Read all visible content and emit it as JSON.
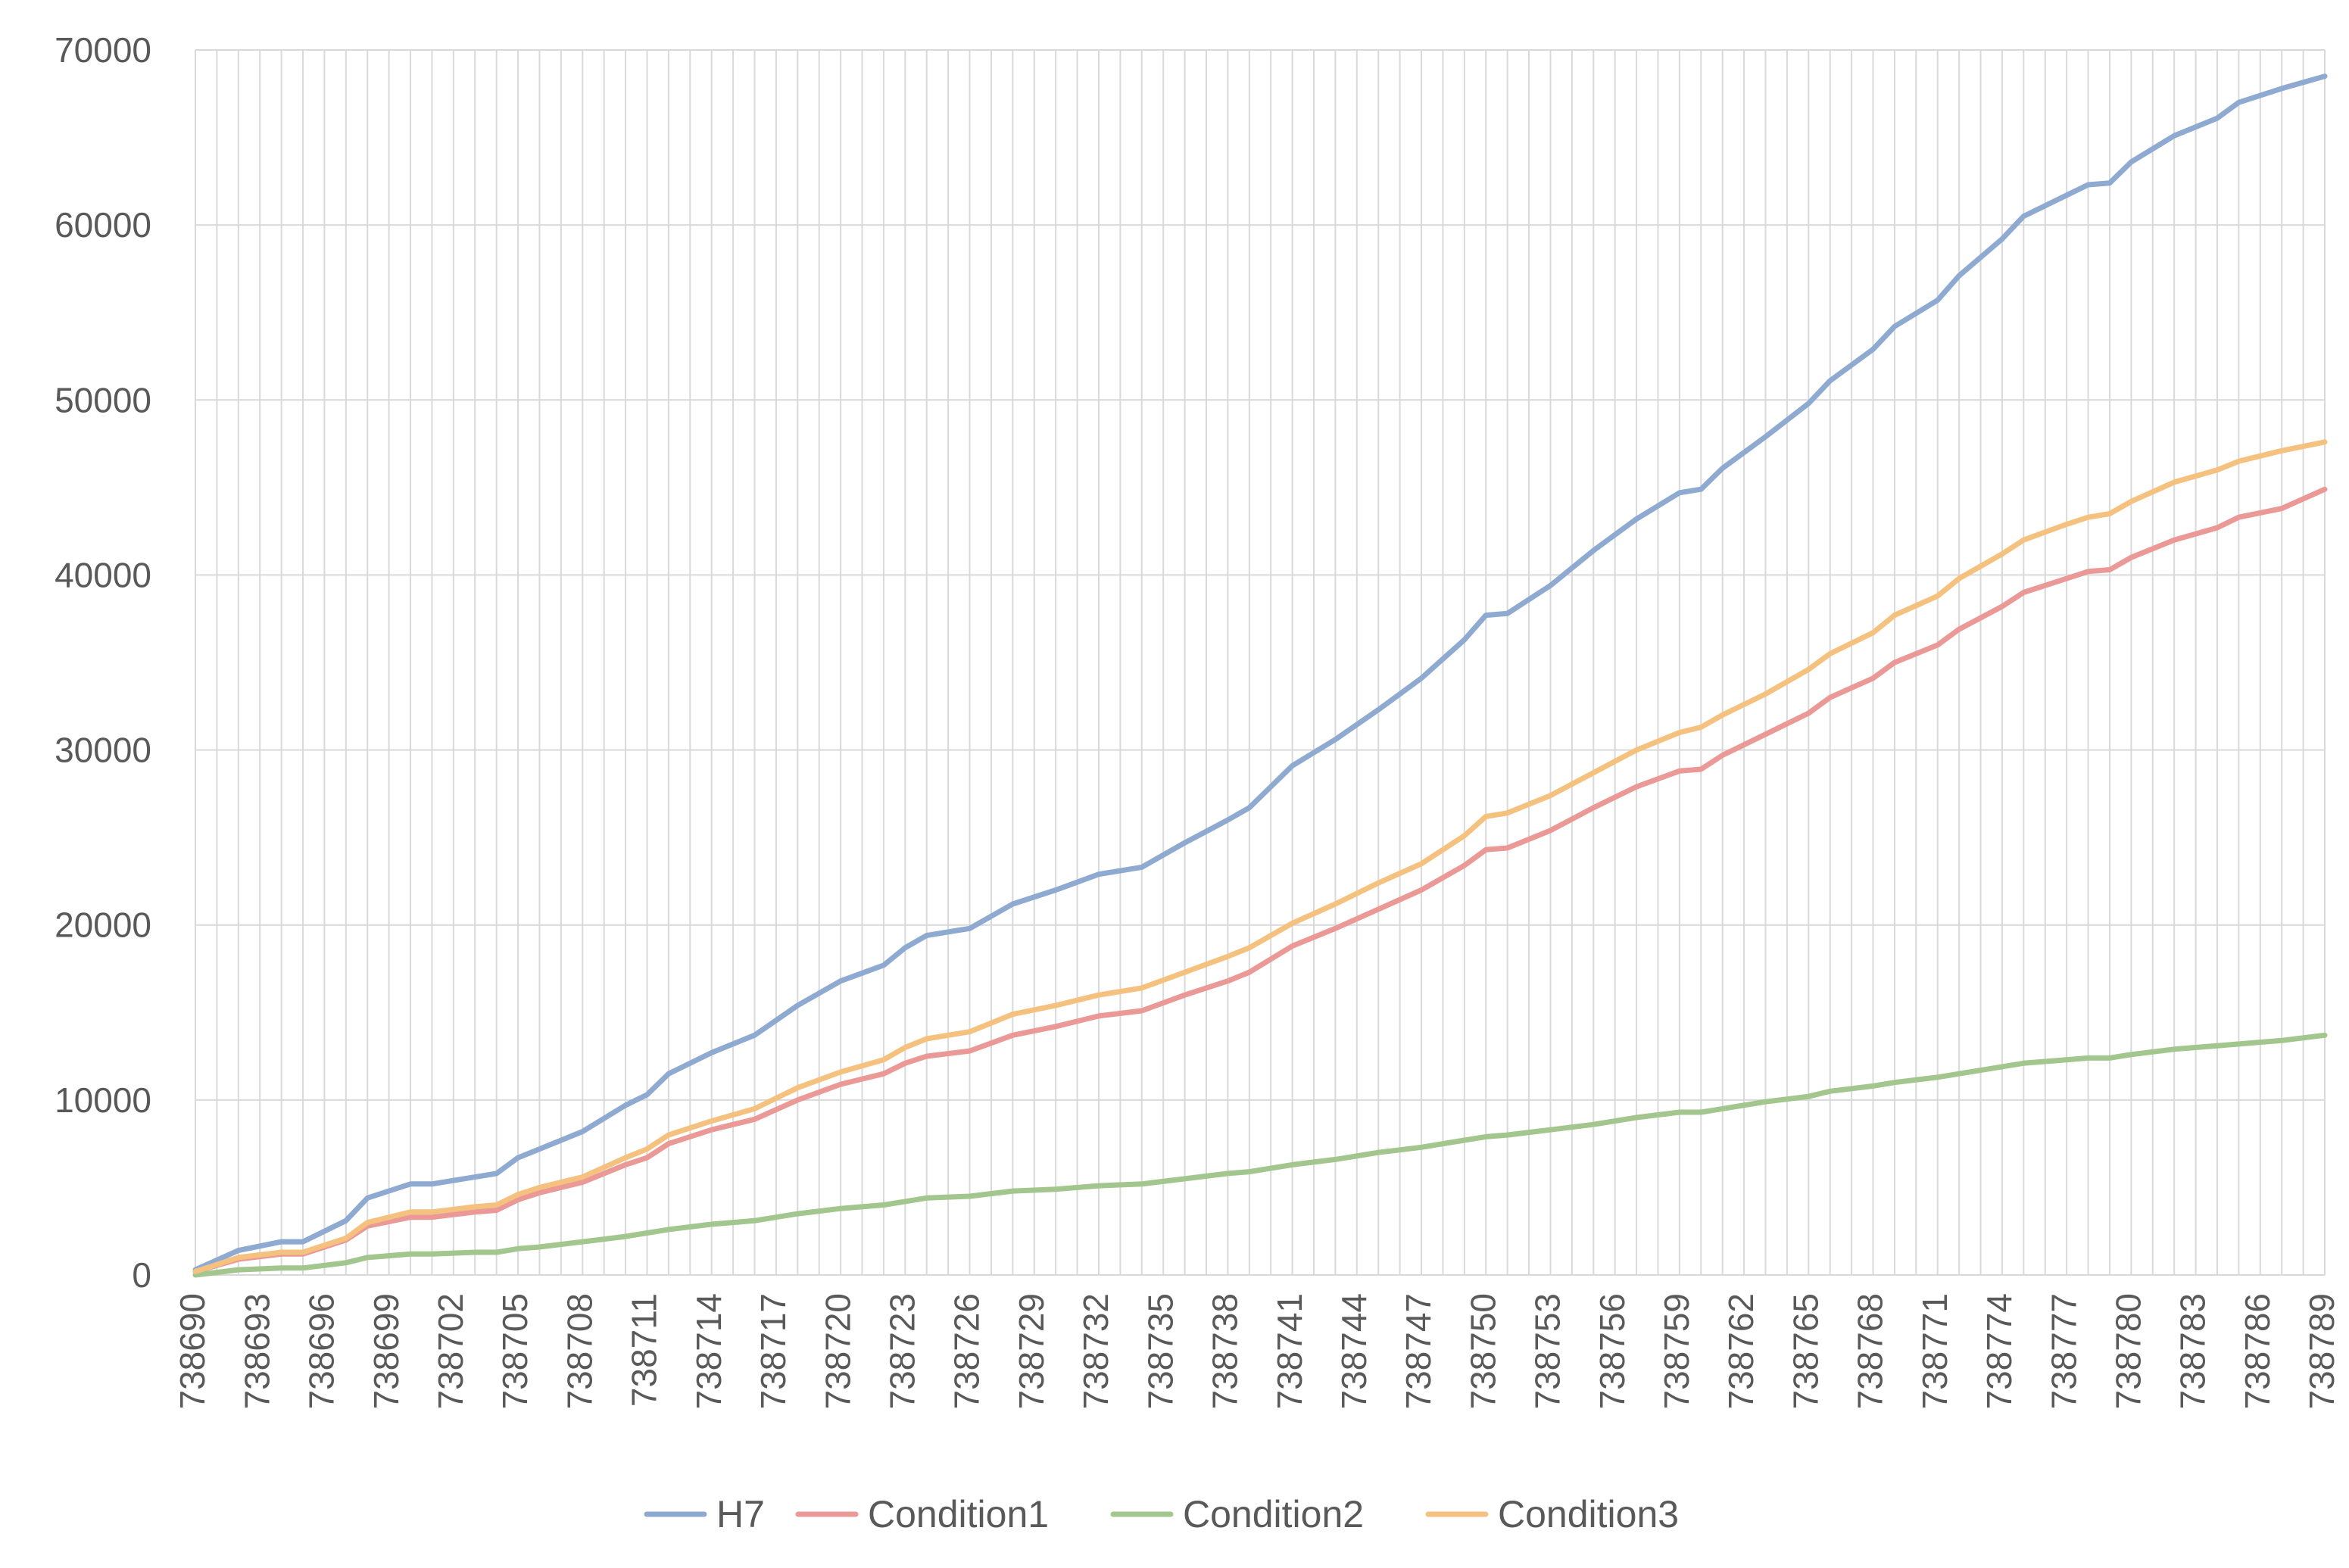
{
  "colors": {
    "H7": "#8faad1",
    "Condition1": "#ea9996",
    "Condition2": "#a2c68d",
    "Condition3": "#f5c17f",
    "grid": "#d9d9d9",
    "axis_text": "#595959"
  },
  "chart_data": {
    "type": "line",
    "title": "",
    "xlabel": "",
    "ylabel": "",
    "x_start": 738690,
    "x_end": 738789,
    "x_tick_labels": [
      "738690",
      "738693",
      "738696",
      "738699",
      "738702",
      "738705",
      "738708",
      "738711",
      "738714",
      "738717",
      "738720",
      "738723",
      "738726",
      "738729",
      "738732",
      "738735",
      "738738",
      "738741",
      "738744",
      "738747",
      "738750",
      "738753",
      "738756",
      "738759",
      "738762",
      "738765",
      "738768",
      "738771",
      "738774",
      "738777",
      "738780",
      "738783",
      "738786",
      "738789"
    ],
    "ylim": [
      0,
      70000
    ],
    "y_ticks": [
      0,
      10000,
      20000,
      30000,
      40000,
      50000,
      60000,
      70000
    ],
    "grid": true,
    "legend_position": "bottom",
    "series": [
      {
        "name": "H7",
        "key": "H7",
        "points": [
          [
            738690,
            300
          ],
          [
            738692,
            1400
          ],
          [
            738694,
            1900
          ],
          [
            738695,
            1900
          ],
          [
            738697,
            3100
          ],
          [
            738698,
            4400
          ],
          [
            738700,
            5200
          ],
          [
            738701,
            5200
          ],
          [
            738703,
            5600
          ],
          [
            738704,
            5800
          ],
          [
            738705,
            6700
          ],
          [
            738706,
            7200
          ],
          [
            738708,
            8200
          ],
          [
            738710,
            9700
          ],
          [
            738711,
            10300
          ],
          [
            738712,
            11500
          ],
          [
            738714,
            12700
          ],
          [
            738716,
            13700
          ],
          [
            738718,
            15400
          ],
          [
            738720,
            16800
          ],
          [
            738722,
            17700
          ],
          [
            738723,
            18700
          ],
          [
            738724,
            19400
          ],
          [
            738726,
            19800
          ],
          [
            738728,
            21200
          ],
          [
            738730,
            22000
          ],
          [
            738732,
            22900
          ],
          [
            738734,
            23300
          ],
          [
            738736,
            24700
          ],
          [
            738738,
            26000
          ],
          [
            738739,
            26700
          ],
          [
            738741,
            29100
          ],
          [
            738743,
            30600
          ],
          [
            738745,
            32300
          ],
          [
            738747,
            34100
          ],
          [
            738749,
            36300
          ],
          [
            738750,
            37700
          ],
          [
            738751,
            37800
          ],
          [
            738753,
            39400
          ],
          [
            738755,
            41400
          ],
          [
            738757,
            43200
          ],
          [
            738759,
            44700
          ],
          [
            738760,
            44900
          ],
          [
            738761,
            46100
          ],
          [
            738763,
            47900
          ],
          [
            738765,
            49800
          ],
          [
            738766,
            51100
          ],
          [
            738768,
            52900
          ],
          [
            738769,
            54200
          ],
          [
            738771,
            55700
          ],
          [
            738772,
            57100
          ],
          [
            738774,
            59200
          ],
          [
            738775,
            60500
          ],
          [
            738777,
            61700
          ],
          [
            738778,
            62300
          ],
          [
            738779,
            62400
          ],
          [
            738780,
            63600
          ],
          [
            738782,
            65100
          ],
          [
            738784,
            66100
          ],
          [
            738785,
            67000
          ],
          [
            738787,
            67800
          ],
          [
            738789,
            68500
          ]
        ]
      },
      {
        "name": "Condition1",
        "key": "Condition1",
        "points": [
          [
            738690,
            200
          ],
          [
            738692,
            900
          ],
          [
            738694,
            1200
          ],
          [
            738695,
            1200
          ],
          [
            738697,
            2000
          ],
          [
            738698,
            2800
          ],
          [
            738700,
            3300
          ],
          [
            738701,
            3300
          ],
          [
            738703,
            3600
          ],
          [
            738704,
            3700
          ],
          [
            738705,
            4300
          ],
          [
            738706,
            4700
          ],
          [
            738708,
            5300
          ],
          [
            738710,
            6300
          ],
          [
            738711,
            6700
          ],
          [
            738712,
            7500
          ],
          [
            738714,
            8300
          ],
          [
            738716,
            8900
          ],
          [
            738718,
            10000
          ],
          [
            738720,
            10900
          ],
          [
            738722,
            11500
          ],
          [
            738723,
            12100
          ],
          [
            738724,
            12500
          ],
          [
            738726,
            12800
          ],
          [
            738728,
            13700
          ],
          [
            738730,
            14200
          ],
          [
            738732,
            14800
          ],
          [
            738734,
            15100
          ],
          [
            738736,
            16000
          ],
          [
            738738,
            16800
          ],
          [
            738739,
            17300
          ],
          [
            738741,
            18800
          ],
          [
            738743,
            19800
          ],
          [
            738745,
            20900
          ],
          [
            738747,
            22000
          ],
          [
            738749,
            23400
          ],
          [
            738750,
            24300
          ],
          [
            738751,
            24400
          ],
          [
            738753,
            25400
          ],
          [
            738755,
            26700
          ],
          [
            738757,
            27900
          ],
          [
            738759,
            28800
          ],
          [
            738760,
            28900
          ],
          [
            738761,
            29700
          ],
          [
            738763,
            30900
          ],
          [
            738765,
            32100
          ],
          [
            738766,
            33000
          ],
          [
            738768,
            34100
          ],
          [
            738769,
            35000
          ],
          [
            738771,
            36000
          ],
          [
            738772,
            36900
          ],
          [
            738774,
            38200
          ],
          [
            738775,
            39000
          ],
          [
            738777,
            39800
          ],
          [
            738778,
            40200
          ],
          [
            738779,
            40300
          ],
          [
            738780,
            41000
          ],
          [
            738782,
            42000
          ],
          [
            738784,
            42700
          ],
          [
            738785,
            43300
          ],
          [
            738787,
            43800
          ],
          [
            738789,
            44900
          ]
        ]
      },
      {
        "name": "Condition2",
        "key": "Condition2",
        "points": [
          [
            738690,
            0
          ],
          [
            738692,
            300
          ],
          [
            738694,
            400
          ],
          [
            738695,
            400
          ],
          [
            738697,
            700
          ],
          [
            738698,
            1000
          ],
          [
            738700,
            1200
          ],
          [
            738701,
            1200
          ],
          [
            738703,
            1300
          ],
          [
            738704,
            1300
          ],
          [
            738705,
            1500
          ],
          [
            738706,
            1600
          ],
          [
            738708,
            1900
          ],
          [
            738710,
            2200
          ],
          [
            738711,
            2400
          ],
          [
            738712,
            2600
          ],
          [
            738714,
            2900
          ],
          [
            738716,
            3100
          ],
          [
            738718,
            3500
          ],
          [
            738720,
            3800
          ],
          [
            738722,
            4000
          ],
          [
            738723,
            4200
          ],
          [
            738724,
            4400
          ],
          [
            738726,
            4500
          ],
          [
            738728,
            4800
          ],
          [
            738730,
            4900
          ],
          [
            738732,
            5100
          ],
          [
            738734,
            5200
          ],
          [
            738736,
            5500
          ],
          [
            738738,
            5800
          ],
          [
            738739,
            5900
          ],
          [
            738741,
            6300
          ],
          [
            738743,
            6600
          ],
          [
            738745,
            7000
          ],
          [
            738747,
            7300
          ],
          [
            738749,
            7700
          ],
          [
            738750,
            7900
          ],
          [
            738751,
            8000
          ],
          [
            738753,
            8300
          ],
          [
            738755,
            8600
          ],
          [
            738757,
            9000
          ],
          [
            738759,
            9300
          ],
          [
            738760,
            9300
          ],
          [
            738761,
            9500
          ],
          [
            738763,
            9900
          ],
          [
            738765,
            10200
          ],
          [
            738766,
            10500
          ],
          [
            738768,
            10800
          ],
          [
            738769,
            11000
          ],
          [
            738771,
            11300
          ],
          [
            738772,
            11500
          ],
          [
            738774,
            11900
          ],
          [
            738775,
            12100
          ],
          [
            738777,
            12300
          ],
          [
            738778,
            12400
          ],
          [
            738779,
            12400
          ],
          [
            738780,
            12600
          ],
          [
            738782,
            12900
          ],
          [
            738784,
            13100
          ],
          [
            738785,
            13200
          ],
          [
            738787,
            13400
          ],
          [
            738789,
            13700
          ]
        ]
      },
      {
        "name": "Condition3",
        "key": "Condition3",
        "points": [
          [
            738690,
            200
          ],
          [
            738692,
            1000
          ],
          [
            738694,
            1300
          ],
          [
            738695,
            1300
          ],
          [
            738697,
            2100
          ],
          [
            738698,
            3000
          ],
          [
            738700,
            3600
          ],
          [
            738701,
            3600
          ],
          [
            738703,
            3900
          ],
          [
            738704,
            4000
          ],
          [
            738705,
            4600
          ],
          [
            738706,
            5000
          ],
          [
            738708,
            5600
          ],
          [
            738710,
            6700
          ],
          [
            738711,
            7200
          ],
          [
            738712,
            8000
          ],
          [
            738714,
            8800
          ],
          [
            738716,
            9500
          ],
          [
            738718,
            10700
          ],
          [
            738720,
            11600
          ],
          [
            738722,
            12300
          ],
          [
            738723,
            13000
          ],
          [
            738724,
            13500
          ],
          [
            738726,
            13900
          ],
          [
            738728,
            14900
          ],
          [
            738730,
            15400
          ],
          [
            738732,
            16000
          ],
          [
            738734,
            16400
          ],
          [
            738736,
            17300
          ],
          [
            738738,
            18200
          ],
          [
            738739,
            18700
          ],
          [
            738741,
            20100
          ],
          [
            738743,
            21200
          ],
          [
            738745,
            22400
          ],
          [
            738747,
            23500
          ],
          [
            738749,
            25100
          ],
          [
            738750,
            26200
          ],
          [
            738751,
            26400
          ],
          [
            738753,
            27400
          ],
          [
            738755,
            28700
          ],
          [
            738757,
            30000
          ],
          [
            738759,
            31000
          ],
          [
            738760,
            31300
          ],
          [
            738761,
            32000
          ],
          [
            738763,
            33200
          ],
          [
            738765,
            34600
          ],
          [
            738766,
            35500
          ],
          [
            738768,
            36700
          ],
          [
            738769,
            37700
          ],
          [
            738771,
            38800
          ],
          [
            738772,
            39800
          ],
          [
            738774,
            41200
          ],
          [
            738775,
            42000
          ],
          [
            738777,
            42900
          ],
          [
            738778,
            43300
          ],
          [
            738779,
            43500
          ],
          [
            738780,
            44200
          ],
          [
            738782,
            45300
          ],
          [
            738784,
            46000
          ],
          [
            738785,
            46500
          ],
          [
            738787,
            47100
          ],
          [
            738789,
            47600
          ]
        ]
      }
    ]
  }
}
